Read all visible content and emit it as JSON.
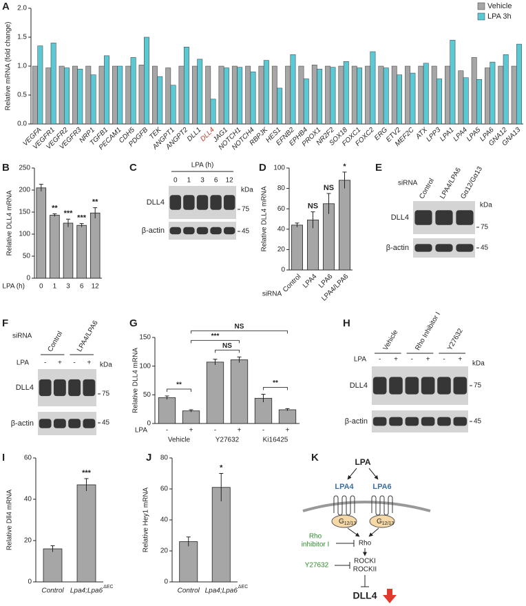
{
  "chart_data": [
    {
      "panel": "A",
      "type": "bar",
      "y_label": "Relative mRNA (fold change)",
      "categories": [
        "VEGFA",
        "VEGFR1",
        "VEGFR2",
        "VEGFR3",
        "NRP1",
        "TGFB1",
        "PECAM1",
        "CDH5",
        "PDGFB",
        "TEK",
        "ANGPT1",
        "ANGPT2",
        "DLL1",
        "DLL4",
        "JAG1",
        "NOTCH1",
        "NOTCH4",
        "RBPJK",
        "HES1",
        "EFNB2",
        "EPHB4",
        "PROX1",
        "NR2F2",
        "SOX18",
        "FOXC1",
        "FOXC2",
        "ERG",
        "ETV2",
        "MEF2C",
        "ATX",
        "LPP3",
        "LPA1",
        "LPA4",
        "LPA5",
        "LPA6",
        "GNA12",
        "GNA13"
      ],
      "series": [
        {
          "name": "Vehicle",
          "color": "#a6a6a6",
          "values": [
            1.0,
            0.97,
            1.0,
            1.0,
            1.0,
            1.0,
            1.0,
            1.0,
            1.02,
            1.0,
            0.97,
            1.0,
            1.0,
            1.0,
            1.0,
            1.0,
            1.0,
            1.0,
            1.0,
            1.0,
            1.0,
            1.02,
            1.0,
            1.0,
            1.0,
            1.0,
            1.0,
            1.0,
            1.0,
            1.0,
            1.0,
            1.0,
            0.92,
            1.15,
            0.97,
            1.0,
            1.0
          ]
        },
        {
          "name": "LPA 3h",
          "color": "#5bc8d4",
          "values": [
            1.35,
            1.4,
            0.97,
            0.95,
            0.85,
            1.18,
            1.0,
            1.15,
            1.5,
            0.82,
            0.67,
            1.33,
            1.12,
            0.43,
            0.97,
            0.98,
            0.9,
            1.1,
            0.62,
            1.2,
            0.78,
            0.95,
            0.98,
            1.08,
            0.97,
            1.25,
            0.97,
            0.85,
            0.88,
            1.05,
            0.78,
            1.45,
            0.8,
            0.77,
            1.07,
            1.2,
            1.38
          ]
        }
      ],
      "highlight": {
        "category": 13,
        "color": "#c0392b"
      },
      "ylim": [
        0,
        2
      ],
      "yticks": [
        {
          "value": 0,
          "label": "0.0"
        },
        0.5,
        {
          "value": 1,
          "label": "1.0"
        },
        1.5,
        {
          "value": 2,
          "label": "2.0"
        }
      ],
      "legend": "top-right"
    },
    {
      "panel": "B",
      "type": "bar",
      "y_label": "Relative DLL4 mRNA",
      "row_label": "LPA (h)",
      "categories": [
        "0",
        "1",
        "3",
        "6",
        "12"
      ],
      "values": [
        205,
        143,
        125,
        120,
        148
      ],
      "errors": [
        8,
        3,
        9,
        4,
        12
      ],
      "significance": [
        null,
        "**",
        "***",
        "***",
        "**"
      ],
      "color": "#a6a6a6",
      "ylim": [
        0,
        250
      ],
      "yticks": [
        0,
        50,
        100,
        150,
        200,
        250
      ]
    },
    {
      "panel": "D",
      "type": "bar",
      "y_label": "Relative DLL4 mRNA",
      "row_label": "siRNA",
      "categories": [
        "Control",
        "LPA4",
        "LPA6",
        "LPA4/LPA6"
      ],
      "values": [
        44,
        49,
        65,
        88
      ],
      "errors": [
        2,
        8,
        10,
        8
      ],
      "significance": [
        null,
        "NS",
        "NS",
        "*"
      ],
      "color": "#a6a6a6",
      "ylim": [
        0,
        100
      ],
      "yticks": [
        0,
        20,
        40,
        60,
        80,
        100
      ]
    },
    {
      "panel": "G",
      "type": "bar",
      "y_label": "Relative DLL4 mRNA",
      "row_label": "LPA",
      "categories": [
        "-",
        "+",
        "-",
        "+",
        "-",
        "+"
      ],
      "groups": [
        "Vehicle",
        "Y27632",
        "Ki16425"
      ],
      "values": [
        45,
        22,
        107,
        111,
        44,
        24
      ],
      "errors": [
        3,
        2,
        5,
        5,
        7,
        2
      ],
      "color": "#a6a6a6",
      "comparisons": [
        {
          "pair": [
            0,
            1
          ],
          "label": "**"
        },
        {
          "pair": [
            2,
            3
          ],
          "label": "NS"
        },
        {
          "pair": [
            4,
            5
          ],
          "label": "**"
        },
        {
          "pair": [
            1,
            3
          ],
          "label": "***"
        },
        {
          "pair": [
            1,
            5
          ],
          "label": "NS"
        }
      ],
      "ylim": [
        0,
        150
      ],
      "yticks": [
        0,
        50,
        100,
        150
      ]
    },
    {
      "panel": "I",
      "type": "bar",
      "y_label": "Relative Dll4 mRNA",
      "categories": [
        "Control",
        "Lpa4;Lpa6"
      ],
      "category_superscripts": [
        null,
        "ΔEC"
      ],
      "values": [
        16,
        47
      ],
      "errors": [
        1.5,
        3
      ],
      "significance": [
        null,
        "***"
      ],
      "color": "#a6a6a6",
      "ylim": [
        0,
        60
      ],
      "yticks": [
        0,
        20,
        40,
        60
      ]
    },
    {
      "panel": "J",
      "type": "bar",
      "y_label": "Relative Hey1 mRNA",
      "categories": [
        "Control",
        "Lpa4;Lpa6"
      ],
      "category_superscripts": [
        null,
        "ΔEC"
      ],
      "values": [
        26,
        61
      ],
      "errors": [
        3,
        9
      ],
      "significance": [
        null,
        "*"
      ],
      "color": "#a6a6a6",
      "ylim": [
        0,
        80
      ],
      "yticks": [
        0,
        20,
        40,
        60,
        80
      ]
    }
  ],
  "blots": [
    {
      "panel": "C",
      "header": "LPA (h)",
      "lanes": [
        "0",
        "1",
        "3",
        "6",
        "12"
      ],
      "kda": "kDa",
      "rows": [
        {
          "name": "DLL4",
          "marker": "75"
        },
        {
          "name": "β-actin",
          "marker": "45"
        }
      ]
    },
    {
      "panel": "E",
      "row_label": "siRNA",
      "lanes": [
        "Control",
        "LPA4/LPA6",
        "Gα12/Gα13"
      ],
      "kda": "kDa",
      "rows": [
        {
          "name": "DLL4",
          "marker": "75"
        },
        {
          "name": "β-actin",
          "marker": "45"
        }
      ]
    },
    {
      "panel": "F",
      "row_label": "siRNA",
      "groups": [
        "Control",
        "LPA4/LPA6"
      ],
      "lane_label": "LPA",
      "lanes": [
        "-",
        "+",
        "-",
        "+"
      ],
      "kda": "kDa",
      "rows": [
        {
          "name": "DLL4",
          "marker": "75"
        },
        {
          "name": "β-actin",
          "marker": "45"
        }
      ]
    },
    {
      "panel": "H",
      "groups": [
        "Vehicle",
        "Rho Inhibitor I",
        "Y27632"
      ],
      "lane_label": "LPA",
      "lanes": [
        "-",
        "+",
        "-",
        "+",
        "-",
        "+"
      ],
      "kda": "kDa",
      "rows": [
        {
          "name": "DLL4",
          "marker": "75"
        },
        {
          "name": "β-actin",
          "marker": "45"
        }
      ]
    }
  ],
  "diagram": {
    "panel": "K",
    "ligand": "LPA",
    "receptors": [
      "LPA4",
      "LPA6"
    ],
    "g_protein": {
      "base": "G",
      "sub": "12/13"
    },
    "rho": "Rho",
    "inhibitors": [
      [
        "Rho",
        "inhibitor I"
      ],
      "Y27632"
    ],
    "rock": [
      "ROCKI",
      "ROCKII"
    ],
    "target": "DLL4"
  }
}
